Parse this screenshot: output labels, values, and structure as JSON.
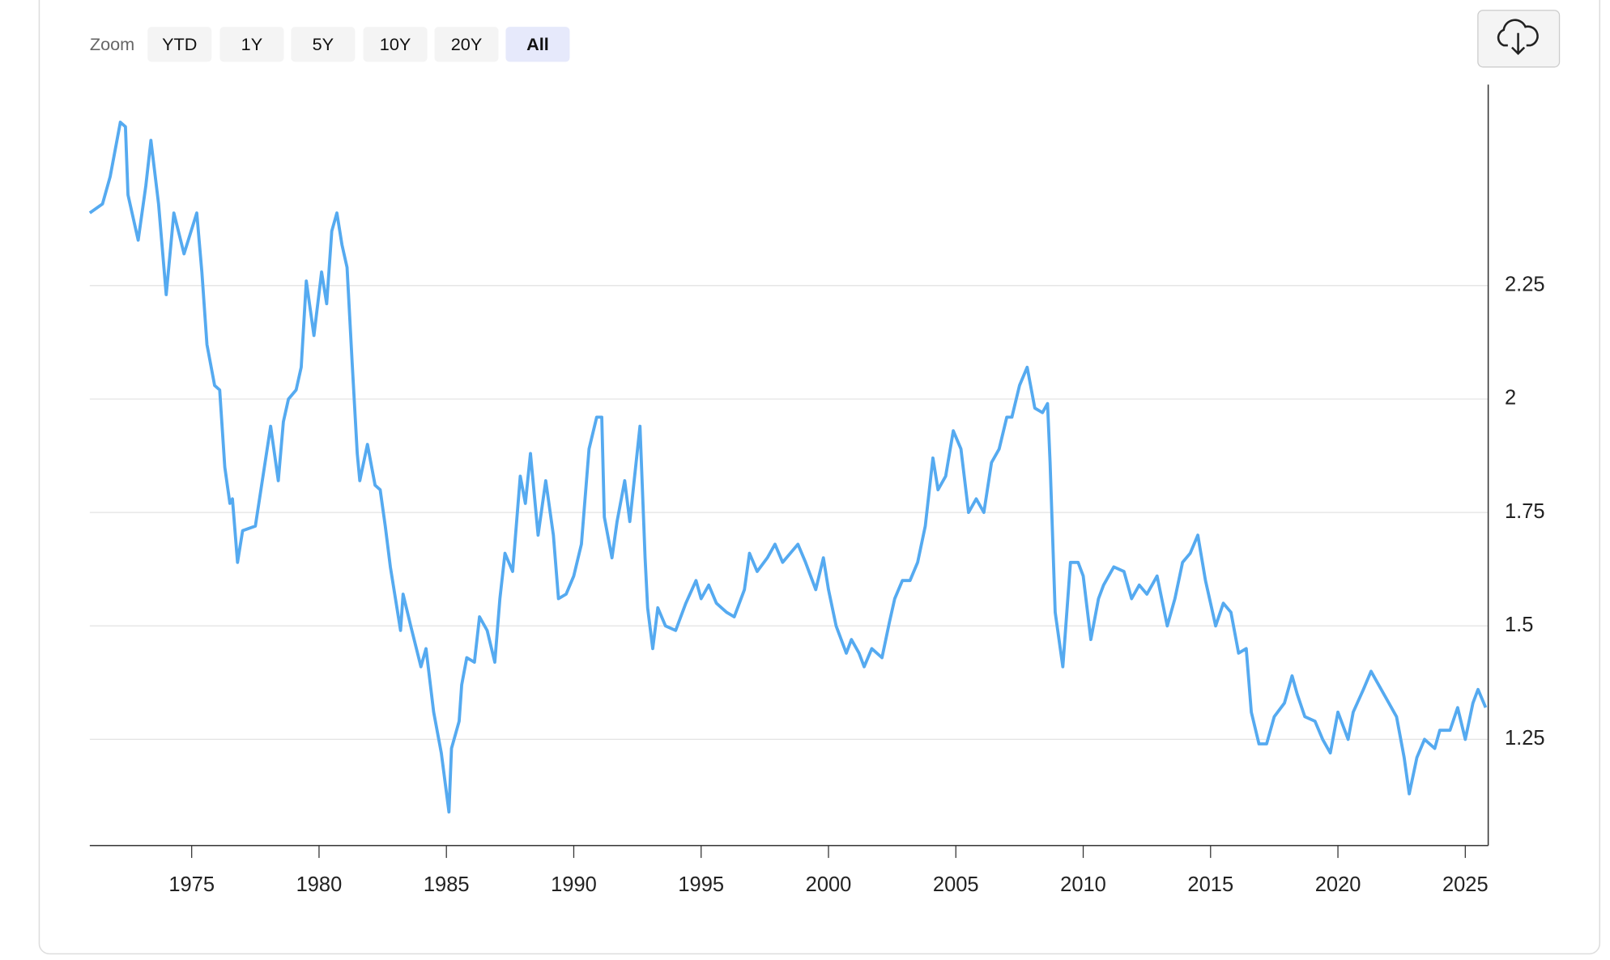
{
  "ui": {
    "zoom_label": "Zoom",
    "zoom_buttons": [
      {
        "label": "YTD",
        "selected": false
      },
      {
        "label": "1Y",
        "selected": false
      },
      {
        "label": "5Y",
        "selected": false
      },
      {
        "label": "10Y",
        "selected": false
      },
      {
        "label": "20Y",
        "selected": false
      },
      {
        "label": "All",
        "selected": true
      }
    ]
  },
  "chart_data": {
    "type": "line",
    "x": [
      1971.0,
      1971.5,
      1971.8,
      1972.2,
      1972.4,
      1972.5,
      1972.9,
      1973.2,
      1973.4,
      1973.7,
      1974.0,
      1974.3,
      1974.7,
      1975.2,
      1975.4,
      1975.6,
      1975.9,
      1976.1,
      1976.3,
      1976.5,
      1976.6,
      1976.8,
      1977.0,
      1977.5,
      1977.8,
      1978.1,
      1978.4,
      1978.6,
      1978.8,
      1979.1,
      1979.3,
      1979.5,
      1979.8,
      1980.1,
      1980.3,
      1980.5,
      1980.7,
      1980.9,
      1981.1,
      1981.3,
      1981.5,
      1981.6,
      1981.9,
      1982.2,
      1982.4,
      1982.6,
      1982.8,
      1983.2,
      1983.3,
      1983.6,
      1984.0,
      1984.2,
      1984.5,
      1984.8,
      1985.1,
      1985.2,
      1985.5,
      1985.6,
      1985.8,
      1986.1,
      1986.3,
      1986.6,
      1986.9,
      1987.1,
      1987.3,
      1987.6,
      1987.9,
      1988.1,
      1988.3,
      1988.6,
      1988.9,
      1989.2,
      1989.4,
      1989.7,
      1990.0,
      1990.3,
      1990.6,
      1990.9,
      1991.1,
      1991.2,
      1991.5,
      1991.7,
      1992.0,
      1992.2,
      1992.6,
      1992.8,
      1992.9,
      1993.1,
      1993.3,
      1993.6,
      1994.0,
      1994.4,
      1994.8,
      1995.0,
      1995.3,
      1995.6,
      1996.0,
      1996.3,
      1996.7,
      1996.9,
      1997.2,
      1997.6,
      1997.9,
      1998.2,
      1998.5,
      1998.8,
      1999.1,
      1999.5,
      1999.8,
      2000.0,
      2000.3,
      2000.7,
      2000.9,
      2001.2,
      2001.4,
      2001.7,
      2002.1,
      2002.4,
      2002.6,
      2002.9,
      2003.2,
      2003.5,
      2003.8,
      2004.1,
      2004.3,
      2004.6,
      2004.9,
      2005.2,
      2005.5,
      2005.8,
      2006.1,
      2006.4,
      2006.7,
      2007.0,
      2007.2,
      2007.5,
      2007.8,
      2008.1,
      2008.4,
      2008.6,
      2008.7,
      2008.9,
      2009.2,
      2009.5,
      2009.8,
      2010.0,
      2010.3,
      2010.6,
      2010.8,
      2011.2,
      2011.6,
      2011.9,
      2012.2,
      2012.5,
      2012.9,
      2013.3,
      2013.6,
      2013.9,
      2014.2,
      2014.5,
      2014.8,
      2015.2,
      2015.5,
      2015.8,
      2016.1,
      2016.4,
      2016.6,
      2016.9,
      2017.2,
      2017.5,
      2017.9,
      2018.2,
      2018.4,
      2018.7,
      2019.1,
      2019.4,
      2019.7,
      2020.0,
      2020.4,
      2020.6,
      2021.0,
      2021.3,
      2021.6,
      2022.0,
      2022.3,
      2022.6,
      2022.8,
      2023.1,
      2023.4,
      2023.8,
      2024.0,
      2024.4,
      2024.7,
      2025.0,
      2025.3,
      2025.5,
      2025.8
    ],
    "series": [
      {
        "color": "#55aaf0",
        "values": [
          2.41,
          2.43,
          2.49,
          2.61,
          2.6,
          2.45,
          2.35,
          2.47,
          2.57,
          2.43,
          2.23,
          2.41,
          2.32,
          2.41,
          2.28,
          2.12,
          2.03,
          2.02,
          1.85,
          1.77,
          1.78,
          1.64,
          1.71,
          1.72,
          1.83,
          1.94,
          1.82,
          1.95,
          2.0,
          2.02,
          2.07,
          2.26,
          2.14,
          2.28,
          2.21,
          2.37,
          2.41,
          2.34,
          2.29,
          2.08,
          1.88,
          1.82,
          1.9,
          1.81,
          1.8,
          1.72,
          1.63,
          1.49,
          1.57,
          1.5,
          1.41,
          1.45,
          1.31,
          1.22,
          1.09,
          1.23,
          1.29,
          1.37,
          1.43,
          1.42,
          1.52,
          1.49,
          1.42,
          1.56,
          1.66,
          1.62,
          1.83,
          1.77,
          1.88,
          1.7,
          1.82,
          1.7,
          1.56,
          1.57,
          1.61,
          1.68,
          1.89,
          1.96,
          1.96,
          1.74,
          1.65,
          1.73,
          1.82,
          1.73,
          1.94,
          1.65,
          1.54,
          1.45,
          1.54,
          1.5,
          1.49,
          1.55,
          1.6,
          1.56,
          1.59,
          1.55,
          1.53,
          1.52,
          1.58,
          1.66,
          1.62,
          1.65,
          1.68,
          1.64,
          1.66,
          1.68,
          1.64,
          1.58,
          1.65,
          1.58,
          1.5,
          1.44,
          1.47,
          1.44,
          1.41,
          1.45,
          1.43,
          1.51,
          1.56,
          1.6,
          1.6,
          1.64,
          1.72,
          1.87,
          1.8,
          1.83,
          1.93,
          1.89,
          1.75,
          1.78,
          1.75,
          1.86,
          1.89,
          1.96,
          1.96,
          2.03,
          2.07,
          1.98,
          1.97,
          1.99,
          1.86,
          1.53,
          1.41,
          1.64,
          1.64,
          1.61,
          1.47,
          1.56,
          1.59,
          1.63,
          1.62,
          1.56,
          1.59,
          1.57,
          1.61,
          1.5,
          1.56,
          1.64,
          1.66,
          1.7,
          1.6,
          1.5,
          1.55,
          1.53,
          1.44,
          1.45,
          1.31,
          1.24,
          1.24,
          1.3,
          1.33,
          1.39,
          1.35,
          1.3,
          1.29,
          1.25,
          1.22,
          1.31,
          1.25,
          1.31,
          1.36,
          1.4,
          1.37,
          1.33,
          1.3,
          1.21,
          1.13,
          1.21,
          1.25,
          1.23,
          1.27,
          1.27,
          1.32,
          1.25,
          1.33,
          1.36,
          1.32
        ]
      }
    ],
    "xlim": [
      1971.0,
      2025.9
    ],
    "xticks": [
      1975,
      1980,
      1985,
      1990,
      1995,
      2000,
      2005,
      2010,
      2015,
      2020,
      2025
    ],
    "ylim": [
      1.016,
      2.693
    ],
    "yticks": [
      1.25,
      1.5,
      1.75,
      2,
      2.25
    ],
    "grid": true
  }
}
